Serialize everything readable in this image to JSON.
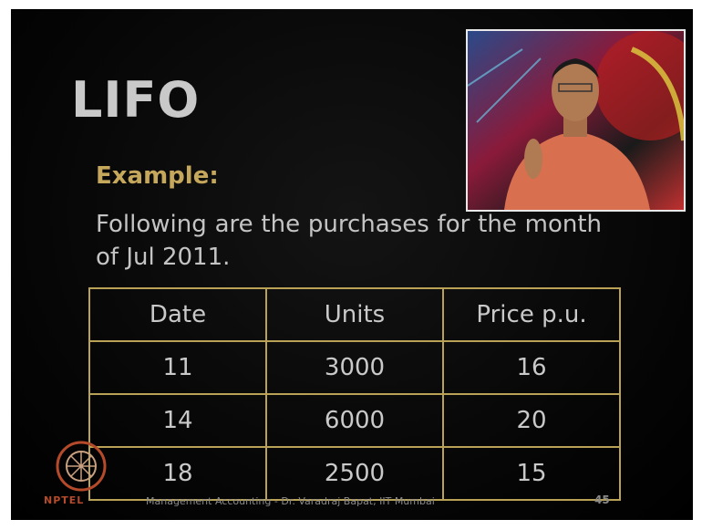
{
  "slide": {
    "title": "LIFO",
    "heading": "Example:",
    "text": "Following are the purchases for the month of Jul 2011.",
    "table": {
      "columns": [
        "Date",
        "Units",
        "Price p.u."
      ],
      "rows": [
        [
          11,
          3000,
          16
        ],
        [
          14,
          6000,
          20
        ],
        [
          18,
          2500,
          15
        ]
      ]
    },
    "footer": {
      "logo": "NPTEL",
      "course": "Management Accounting - Dr. Varadraj Bapat, IIT Mumbai",
      "page": 45
    }
  }
}
